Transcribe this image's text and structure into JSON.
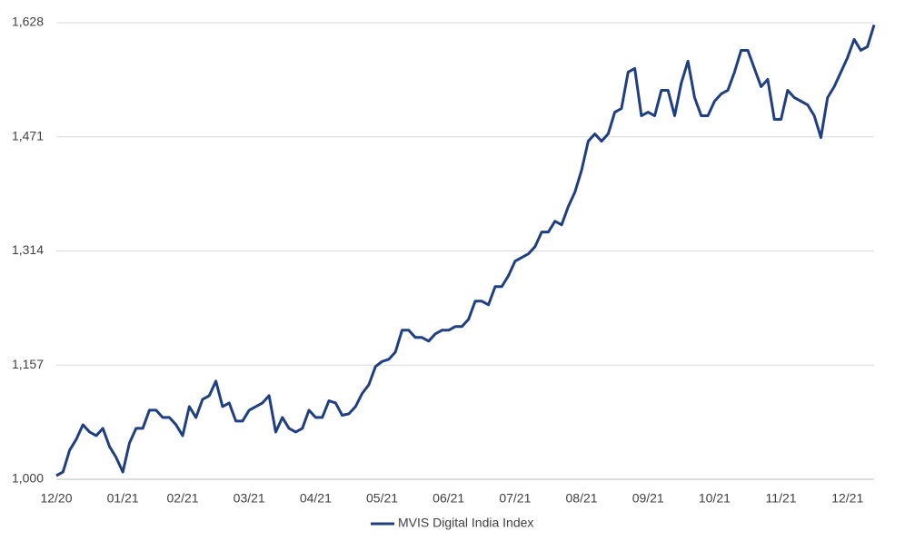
{
  "chart_data": {
    "type": "line",
    "categories": [
      "12/20",
      null,
      null,
      null,
      null,
      null,
      null,
      null,
      null,
      null,
      "01/21",
      null,
      null,
      null,
      null,
      null,
      null,
      null,
      null,
      "02/21",
      null,
      null,
      null,
      null,
      null,
      null,
      null,
      null,
      null,
      "03/21",
      null,
      null,
      null,
      null,
      null,
      null,
      null,
      null,
      null,
      "04/21",
      null,
      null,
      null,
      null,
      null,
      null,
      null,
      null,
      null,
      "05/21",
      null,
      null,
      null,
      null,
      null,
      null,
      null,
      null,
      null,
      "06/21",
      null,
      null,
      null,
      null,
      null,
      null,
      null,
      null,
      null,
      "07/21",
      null,
      null,
      null,
      null,
      null,
      null,
      null,
      null,
      null,
      "08/21",
      null,
      null,
      null,
      null,
      null,
      null,
      null,
      null,
      null,
      "09/21",
      null,
      null,
      null,
      null,
      null,
      null,
      null,
      null,
      null,
      "10/21",
      null,
      null,
      null,
      null,
      null,
      null,
      null,
      null,
      null,
      "11/21",
      null,
      null,
      null,
      null,
      null,
      null,
      null,
      null,
      null,
      "12/21",
      null,
      null,
      null,
      null
    ],
    "series": [
      {
        "name": "MVIS Digital India Index",
        "color": "#1f3f80",
        "values": [
          1005,
          1010,
          1040,
          1055,
          1075,
          1065,
          1060,
          1070,
          1045,
          1030,
          1010,
          1050,
          1070,
          1070,
          1095,
          1095,
          1085,
          1085,
          1075,
          1060,
          1100,
          1085,
          1110,
          1115,
          1135,
          1100,
          1105,
          1080,
          1080,
          1095,
          1100,
          1105,
          1115,
          1065,
          1085,
          1070,
          1065,
          1070,
          1095,
          1085,
          1085,
          1108,
          1105,
          1088,
          1090,
          1100,
          1118,
          1130,
          1155,
          1162,
          1165,
          1175,
          1205,
          1205,
          1195,
          1195,
          1190,
          1200,
          1205,
          1205,
          1210,
          1210,
          1220,
          1245,
          1245,
          1240,
          1265,
          1265,
          1280,
          1300,
          1305,
          1310,
          1320,
          1340,
          1340,
          1355,
          1350,
          1375,
          1395,
          1425,
          1465,
          1475,
          1465,
          1475,
          1505,
          1510,
          1560,
          1565,
          1500,
          1505,
          1500,
          1535,
          1535,
          1500,
          1545,
          1575,
          1525,
          1500,
          1500,
          1520,
          1530,
          1535,
          1560,
          1590,
          1590,
          1565,
          1540,
          1550,
          1495,
          1495,
          1535,
          1525,
          1520,
          1515,
          1500,
          1470,
          1525,
          1540,
          1560,
          1580,
          1605,
          1590,
          1595,
          1625
        ]
      }
    ],
    "ylim": [
      1000,
      1628
    ],
    "yticks": [
      {
        "value": 1000,
        "label": "1,000"
      },
      {
        "value": 1157,
        "label": "1,157"
      },
      {
        "value": 1314,
        "label": "1,314"
      },
      {
        "value": 1471,
        "label": "1,471"
      },
      {
        "value": 1628,
        "label": "1,628"
      }
    ],
    "grid": true,
    "legend": "bottom"
  }
}
